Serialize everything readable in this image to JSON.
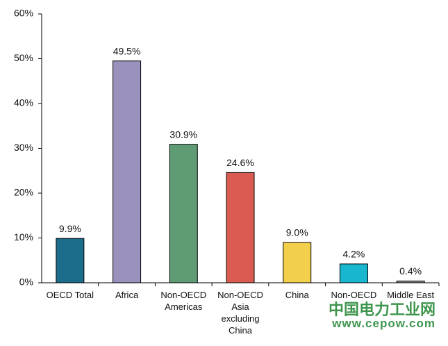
{
  "chart_data": {
    "type": "bar",
    "categories": [
      "OECD Total",
      "Africa",
      "Non-OECD Americas",
      "Non-OECD Asia excluding China",
      "China",
      "Non-OECD",
      "Middle East"
    ],
    "values": [
      9.9,
      49.5,
      30.9,
      24.6,
      9.0,
      4.2,
      0.4
    ],
    "value_labels": [
      "9.9%",
      "49.5%",
      "30.9%",
      "24.6%",
      "9.0%",
      "4.2%",
      "0.4%"
    ],
    "colors": [
      "#1c6d8c",
      "#9a92bc",
      "#5f9b75",
      "#d95b52",
      "#f3d04b",
      "#19b6d0",
      "#8c8c8c"
    ],
    "ylim": [
      0,
      60
    ],
    "yticks": [
      {
        "value": 0,
        "label": "0%"
      },
      {
        "value": 10,
        "label": "10%"
      },
      {
        "value": 20,
        "label": "20%"
      },
      {
        "value": 30,
        "label": "30%"
      },
      {
        "value": 40,
        "label": "40%"
      },
      {
        "value": 50,
        "label": "50%"
      },
      {
        "value": 60,
        "label": "60%"
      }
    ],
    "watermark": [
      "中国电力工业网",
      "www.cepow.com"
    ]
  }
}
